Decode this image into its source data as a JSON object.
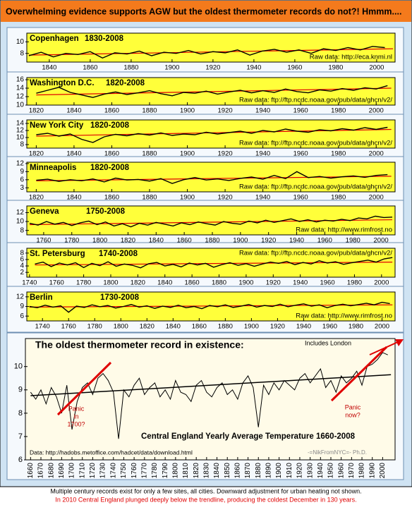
{
  "header": {
    "title": "Overwhelming evidence supports AGW but the oldest thermometer records do not?!   Hmmm...."
  },
  "footer": {
    "note": "Multiple century records exist for only a few sites, all cities.  Downward adjustment for urban heating not shown.",
    "highlight": "In 2010 Central England plunged deeply below the trendline, producing the coldest December in 130 years."
  },
  "chart_data": [
    {
      "type": "line",
      "title": "Copenhagen",
      "subtitle": "1830-2008",
      "source": "Raw data: http://eca.knmi.nl",
      "color": "#000000",
      "x": [
        1830,
        1836,
        1842,
        1848,
        1854,
        1860,
        1866,
        1872,
        1878,
        1884,
        1890,
        1896,
        1902,
        1908,
        1914,
        1920,
        1926,
        1932,
        1938,
        1944,
        1950,
        1956,
        1962,
        1968,
        1974,
        1980,
        1986,
        1992,
        1998,
        2004
      ],
      "values": [
        7.6,
        8.2,
        7.4,
        8.0,
        7.8,
        8.3,
        7.2,
        8.1,
        7.9,
        8.4,
        7.6,
        8.2,
        8.0,
        8.5,
        7.9,
        8.3,
        8.1,
        8.6,
        7.7,
        8.4,
        8.7,
        8.2,
        8.6,
        8.0,
        8.8,
        8.5,
        9.0,
        8.6,
        9.2,
        9.0
      ],
      "trend": {
        "x": [
          1830,
          2008
        ],
        "values": [
          7.7,
          8.8
        ],
        "color": "#e00000"
      },
      "xlim": [
        1829,
        2009
      ],
      "xticks": [
        1840,
        1860,
        1880,
        1900,
        1920,
        1940,
        1960,
        1980,
        2000
      ],
      "ylim": [
        6.5,
        11.5
      ],
      "yticks": [
        8,
        10
      ]
    },
    {
      "type": "line",
      "title": "Washington D.C.",
      "subtitle": "1820-2008",
      "source": "Raw data: ftp://ftp.ncdc.noaa.gov/pub/data/ghcn/v2/",
      "color": "#000000",
      "x": [
        1820,
        1826,
        1832,
        1838,
        1844,
        1850,
        1856,
        1862,
        1868,
        1874,
        1880,
        1886,
        1892,
        1898,
        1904,
        1910,
        1916,
        1922,
        1928,
        1934,
        1940,
        1946,
        1952,
        1958,
        1964,
        1970,
        1976,
        1982,
        1988,
        1994,
        2000,
        2006
      ],
      "values": [
        12.8,
        13.5,
        14.2,
        13.0,
        12.4,
        11.8,
        12.6,
        13.1,
        12.5,
        12.9,
        13.4,
        12.7,
        12.2,
        13.0,
        12.8,
        13.3,
        12.6,
        13.1,
        13.5,
        12.9,
        13.4,
        13.0,
        13.8,
        13.2,
        12.9,
        13.6,
        13.3,
        13.9,
        13.5,
        14.1,
        13.8,
        14.6
      ],
      "trend": {
        "x": [
          1820,
          2008
        ],
        "values": [
          12.4,
          14.0
        ],
        "color": "#e00000"
      },
      "xlim": [
        1815,
        2010
      ],
      "xticks": [
        1820,
        1840,
        1860,
        1880,
        1900,
        1920,
        1940,
        1960,
        1980,
        2000
      ],
      "ylim": [
        10,
        16.5
      ],
      "yticks": [
        10,
        12,
        14,
        16
      ]
    },
    {
      "type": "line",
      "title": "New York City",
      "subtitle": "1820-2008",
      "source": "Raw data: ftp://ftp.ncdc.noaa.gov/pub/data/ghcn/v2/",
      "color": "#000000",
      "x": [
        1820,
        1826,
        1832,
        1838,
        1844,
        1850,
        1856,
        1862,
        1868,
        1874,
        1880,
        1886,
        1892,
        1898,
        1904,
        1910,
        1916,
        1922,
        1928,
        1934,
        1940,
        1946,
        1952,
        1958,
        1964,
        1970,
        1976,
        1982,
        1988,
        1994,
        2000,
        2006
      ],
      "values": [
        10.8,
        11.2,
        10.4,
        11.0,
        9.5,
        8.6,
        10.2,
        10.9,
        10.5,
        11.1,
        10.7,
        11.3,
        10.6,
        11.0,
        10.8,
        11.5,
        11.0,
        11.4,
        11.8,
        11.2,
        12.0,
        11.6,
        12.4,
        11.8,
        11.5,
        12.2,
        11.9,
        12.5,
        12.1,
        12.8,
        12.3,
        12.9
      ],
      "trend": {
        "x": [
          1820,
          2008
        ],
        "values": [
          10.4,
          12.3
        ],
        "color": "#e00000"
      },
      "xlim": [
        1815,
        2010
      ],
      "xticks": [
        1820,
        1840,
        1860,
        1880,
        1900,
        1920,
        1940,
        1960,
        1980,
        2000
      ],
      "ylim": [
        7,
        15
      ],
      "yticks": [
        8,
        10,
        12,
        14
      ]
    },
    {
      "type": "line",
      "title": "Minneapolis",
      "subtitle": "1820-2008",
      "source": "Raw data: ftp://ftp.ncdc.noaa.gov/pub/data/ghcn/v2/",
      "color": "#000000",
      "x": [
        1820,
        1826,
        1832,
        1838,
        1844,
        1850,
        1856,
        1862,
        1868,
        1874,
        1880,
        1886,
        1892,
        1898,
        1904,
        1910,
        1916,
        1922,
        1928,
        1934,
        1940,
        1946,
        1952,
        1958,
        1964,
        1970,
        1976,
        1982,
        1988,
        1994,
        2000,
        2006
      ],
      "values": [
        5.8,
        6.2,
        5.4,
        6.0,
        5.6,
        6.3,
        5.2,
        6.6,
        5.9,
        6.1,
        5.5,
        6.4,
        4.6,
        6.0,
        6.8,
        5.9,
        6.3,
        5.7,
        6.5,
        7.0,
        6.2,
        7.6,
        6.4,
        9.0,
        6.8,
        7.2,
        6.6,
        7.1,
        7.4,
        6.9,
        7.6,
        7.9
      ],
      "trend": {
        "x": [
          1820,
          2008
        ],
        "values": [
          5.6,
          7.3
        ],
        "color": "#e00000"
      },
      "xlim": [
        1815,
        2010
      ],
      "xticks": [
        1820,
        1840,
        1860,
        1880,
        1900,
        1920,
        1940,
        1960,
        1980,
        2000
      ],
      "ylim": [
        1.5,
        12.5
      ],
      "yticks": [
        3,
        6,
        9,
        12
      ]
    },
    {
      "type": "line",
      "title": "Geneva",
      "subtitle": "1750-2008",
      "source": "Raw data: http://www.rimfrost.no",
      "color": "#000000",
      "x": [
        1750,
        1756,
        1762,
        1768,
        1774,
        1780,
        1786,
        1792,
        1798,
        1804,
        1810,
        1816,
        1822,
        1828,
        1834,
        1840,
        1846,
        1852,
        1858,
        1864,
        1870,
        1876,
        1882,
        1888,
        1894,
        1900,
        1906,
        1912,
        1918,
        1924,
        1930,
        1936,
        1942,
        1948,
        1954,
        1960,
        1966,
        1972,
        1978,
        1984,
        1990,
        1996,
        2002,
        2008
      ],
      "values": [
        9.6,
        9.2,
        10.0,
        9.4,
        9.8,
        9.1,
        9.7,
        10.1,
        9.3,
        9.9,
        9.0,
        9.5,
        8.8,
        9.6,
        9.2,
        9.8,
        9.4,
        9.0,
        9.7,
        9.3,
        9.9,
        9.5,
        9.2,
        10.0,
        9.6,
        9.4,
        10.1,
        9.7,
        10.3,
        9.8,
        10.2,
        10.6,
        10.0,
        10.4,
        9.9,
        10.3,
        10.1,
        10.5,
        10.2,
        10.8,
        10.6,
        11.2,
        10.9,
        11.0
      ],
      "trend": {
        "x": [
          1750,
          2008
        ],
        "values": [
          9.3,
          10.4
        ],
        "color": "#e00000"
      },
      "xlim": [
        1748,
        2010
      ],
      "xticks": [
        1760,
        1780,
        1800,
        1820,
        1840,
        1860,
        1880,
        1900,
        1920,
        1940,
        1960,
        1980,
        2000
      ],
      "ylim": [
        7,
        13.5
      ],
      "yticks": [
        8,
        10,
        12
      ]
    },
    {
      "type": "line",
      "title": "St. Petersburg",
      "subtitle": "1740-2008",
      "source": "Raw data: ftp://ftp.ncdc.noaa.gov/pub/data/ghcn/v2/",
      "color": "#000000",
      "x": [
        1744,
        1750,
        1756,
        1762,
        1768,
        1774,
        1780,
        1786,
        1792,
        1798,
        1804,
        1810,
        1816,
        1822,
        1828,
        1834,
        1840,
        1846,
        1852,
        1858,
        1864,
        1870,
        1876,
        1882,
        1888,
        1894,
        1900,
        1906,
        1912,
        1918,
        1924,
        1930,
        1936,
        1942,
        1948,
        1954,
        1960,
        1966,
        1972,
        1978,
        1984,
        1990,
        1996,
        2002,
        2008
      ],
      "values": [
        4.6,
        5.2,
        3.8,
        4.9,
        4.3,
        5.0,
        3.5,
        4.8,
        4.1,
        5.3,
        3.9,
        4.6,
        4.2,
        3.4,
        4.7,
        5.1,
        4.0,
        4.5,
        3.7,
        4.9,
        4.3,
        4.8,
        3.6,
        4.4,
        5.0,
        4.2,
        4.7,
        3.9,
        4.6,
        5.2,
        4.8,
        5.4,
        4.4,
        5.1,
        4.6,
        5.6,
        4.9,
        5.3,
        4.5,
        5.0,
        5.4,
        5.8,
        5.2,
        6.2,
        6.6
      ],
      "trend": {
        "x": [
          1744,
          2008
        ],
        "values": [
          4.3,
          5.2
        ],
        "color": "#e00000"
      },
      "xlim": [
        1738,
        2010
      ],
      "xticks": [
        1740,
        1760,
        1780,
        1800,
        1820,
        1840,
        1860,
        1880,
        1900,
        1920,
        1940,
        1960,
        1980,
        2000
      ],
      "ylim": [
        0.5,
        9.5
      ],
      "yticks": [
        2,
        4,
        6,
        8
      ]
    },
    {
      "type": "line",
      "title": "Berlin",
      "subtitle": "1730-2008",
      "source": "Raw data: http://www.rimfrost.no",
      "color": "#000000",
      "x": [
        1730,
        1736,
        1742,
        1748,
        1754,
        1760,
        1766,
        1772,
        1778,
        1784,
        1790,
        1796,
        1802,
        1808,
        1814,
        1820,
        1826,
        1832,
        1838,
        1844,
        1850,
        1856,
        1862,
        1868,
        1874,
        1880,
        1886,
        1892,
        1898,
        1904,
        1910,
        1916,
        1922,
        1928,
        1934,
        1940,
        1946,
        1952,
        1958,
        1964,
        1970,
        1976,
        1982,
        1988,
        1994,
        2000,
        2006
      ],
      "values": [
        9.0,
        8.6,
        9.4,
        8.8,
        9.2,
        7.2,
        9.1,
        8.7,
        9.5,
        8.9,
        9.3,
        8.5,
        9.0,
        9.6,
        8.8,
        9.2,
        8.4,
        9.1,
        8.7,
        9.4,
        8.6,
        9.0,
        8.3,
        9.3,
        8.9,
        9.5,
        8.7,
        9.1,
        9.6,
        8.8,
        9.3,
        9.0,
        9.7,
        8.9,
        9.4,
        9.8,
        9.1,
        9.5,
        8.6,
        9.3,
        9.7,
        9.2,
        9.6,
        10.0,
        9.5,
        10.3,
        9.9
      ],
      "trend": {
        "x": [
          1730,
          2008
        ],
        "values": [
          8.8,
          9.5
        ],
        "color": "#e00000"
      },
      "xlim": [
        1728,
        2010
      ],
      "xticks": [
        1740,
        1760,
        1780,
        1800,
        1820,
        1840,
        1860,
        1880,
        1900,
        1920,
        1940,
        1960,
        1980,
        2000
      ],
      "ylim": [
        4.5,
        13.5
      ],
      "yticks": [
        6,
        9,
        12
      ]
    },
    {
      "type": "line",
      "title": "The oldest thermometer record in existence:",
      "subtitle": "Central England Yearly Average Temperature 1660-2008",
      "source": "Data: http://hadobs.metoffice.com/hadcet/data/download.html",
      "credit": "-=NikFromNYC=- Ph.D.",
      "note": "Includes London",
      "annotations": [
        [
          "Panic",
          "in",
          "1700?"
        ],
        [
          "Panic",
          "now?"
        ]
      ],
      "color": "#000000",
      "x": [
        1660,
        1665,
        1670,
        1675,
        1680,
        1685,
        1690,
        1695,
        1700,
        1705,
        1710,
        1715,
        1720,
        1725,
        1730,
        1735,
        1740,
        1745,
        1750,
        1755,
        1760,
        1765,
        1770,
        1775,
        1780,
        1785,
        1790,
        1795,
        1800,
        1805,
        1810,
        1815,
        1820,
        1825,
        1830,
        1835,
        1840,
        1845,
        1850,
        1855,
        1860,
        1865,
        1870,
        1875,
        1880,
        1885,
        1890,
        1895,
        1900,
        1905,
        1910,
        1915,
        1920,
        1925,
        1930,
        1935,
        1940,
        1945,
        1950,
        1955,
        1960,
        1965,
        1970,
        1975,
        1980,
        1985,
        1990,
        1995,
        2000,
        2005
      ],
      "values": [
        8.9,
        8.6,
        9.0,
        8.4,
        9.1,
        8.7,
        8.0,
        9.2,
        7.3,
        8.5,
        9.1,
        9.3,
        8.8,
        9.5,
        9.7,
        9.4,
        8.9,
        6.9,
        9.0,
        8.7,
        9.2,
        9.5,
        8.8,
        9.1,
        9.3,
        8.7,
        9.0,
        8.6,
        9.4,
        8.9,
        8.8,
        8.5,
        9.2,
        9.4,
        8.9,
        8.7,
        9.1,
        9.3,
        8.8,
        9.0,
        8.6,
        9.3,
        9.6,
        9.1,
        7.4,
        9.2,
        8.8,
        9.3,
        9.0,
        9.4,
        9.2,
        9.0,
        9.5,
        9.7,
        9.3,
        9.6,
        9.9,
        9.1,
        9.4,
        8.9,
        9.6,
        9.3,
        9.5,
        9.8,
        9.2,
        10.0,
        10.1,
        10.3,
        10.6,
        10.5
      ],
      "trend": {
        "x": [
          1660,
          2008
        ],
        "values": [
          8.75,
          9.65
        ],
        "color": "#000000"
      },
      "xlim": [
        1655,
        2012
      ],
      "xticks": [
        1660,
        1670,
        1680,
        1690,
        1700,
        1710,
        1720,
        1730,
        1740,
        1750,
        1760,
        1770,
        1780,
        1790,
        1800,
        1810,
        1820,
        1830,
        1840,
        1850,
        1860,
        1870,
        1880,
        1890,
        1900,
        1910,
        1920,
        1930,
        1940,
        1950,
        1960,
        1970,
        1980,
        1990,
        2000
      ],
      "ylim": [
        6,
        11.2
      ],
      "yticks": [
        6,
        7,
        8,
        9,
        10
      ]
    }
  ]
}
